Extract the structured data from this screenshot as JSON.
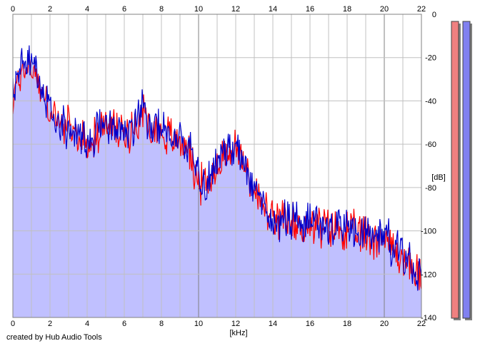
{
  "credit_text": "created by Hub Audio Tools",
  "colors": {
    "left_channel": "#ff0000",
    "right_channel": "#0000cc",
    "fill": "#c0c0ff",
    "grid": "#c0c0c0",
    "major_grid": "#808080",
    "left_meter": "#f08080",
    "right_meter": "#8080f0"
  },
  "chart_data": {
    "type": "line",
    "title": "",
    "xlabel": "[kHz]",
    "ylabel": "[dB]",
    "xlim": [
      0,
      22
    ],
    "ylim": [
      -140,
      0
    ],
    "x_ticks": [
      "0",
      "2",
      "4",
      "6",
      "8",
      "10",
      "12",
      "14",
      "16",
      "18",
      "20",
      "22"
    ],
    "y_ticks": [
      "0",
      "-20",
      "-40",
      "-60",
      "-80",
      "-100",
      "-120",
      "-140"
    ],
    "grid": true,
    "x": [
      0,
      0.5,
      1,
      1.5,
      2,
      2.5,
      3,
      3.5,
      4,
      4.5,
      5,
      5.5,
      6,
      6.5,
      7,
      7.5,
      8,
      8.5,
      9,
      9.5,
      10,
      10.5,
      11,
      11.5,
      12,
      12.5,
      13,
      13.5,
      14,
      14.5,
      15,
      15.5,
      16,
      16.5,
      17,
      17.5,
      18,
      18.5,
      19,
      19.5,
      20,
      20.5,
      21,
      21.5,
      22
    ],
    "series": [
      {
        "values": [
          -40,
          -25,
          -24,
          -34,
          -45,
          -50,
          -53,
          -56,
          -60,
          -56,
          -51,
          -53,
          -56,
          -52,
          -45,
          -52,
          -54,
          -57,
          -58,
          -63,
          -78,
          -78,
          -70,
          -63,
          -62,
          -71,
          -80,
          -90,
          -96,
          -96,
          -96,
          -98,
          -97,
          -98,
          -99,
          -99,
          -100,
          -101,
          -102,
          -103,
          -103,
          -109,
          -112,
          -118,
          -121
        ]
      },
      {
        "values": [
          -38,
          -23,
          -22,
          -33,
          -44,
          -49,
          -52,
          -55,
          -58,
          -55,
          -50,
          -52,
          -55,
          -51,
          -43,
          -51,
          -53,
          -56,
          -57,
          -62,
          -77,
          -77,
          -69,
          -62,
          -61,
          -70,
          -79,
          -89,
          -95,
          -95,
          -95,
          -97,
          -96,
          -97,
          -98,
          -98,
          -99,
          -100,
          -101,
          -102,
          -102,
          -108,
          -111,
          -117,
          -120
        ]
      }
    ],
    "meters": {
      "left": -140,
      "right": -140
    }
  }
}
